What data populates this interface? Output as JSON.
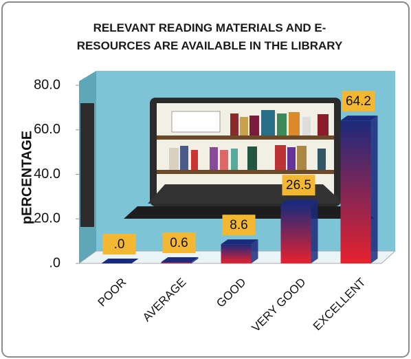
{
  "chart_data": {
    "type": "bar",
    "title": "RELEVANT READING MATERIALS AND E-RESOURCES ARE AVAILABLE IN THE LIBRARY",
    "y_label": "pERCENTAGE",
    "categories": [
      "POOR",
      "AVERAGE",
      "GOOD",
      "VERY GOOD",
      "EXCELLENT"
    ],
    "values": [
      0,
      0.6,
      8.6,
      26.5,
      64.2
    ],
    "value_labels": [
      ".0",
      "0.6",
      "8.6",
      "26.5",
      "64.2"
    ],
    "color": "#1c2a7c",
    "ylim": [
      0,
      80
    ],
    "yticks": [
      {
        "value": 0,
        "label": ".0"
      },
      {
        "value": 20,
        "label": "20.0"
      },
      {
        "value": 40,
        "label": "40.0"
      },
      {
        "value": 60,
        "label": "60.0"
      },
      {
        "value": 80,
        "label": "80.0"
      }
    ],
    "grid": false
  }
}
